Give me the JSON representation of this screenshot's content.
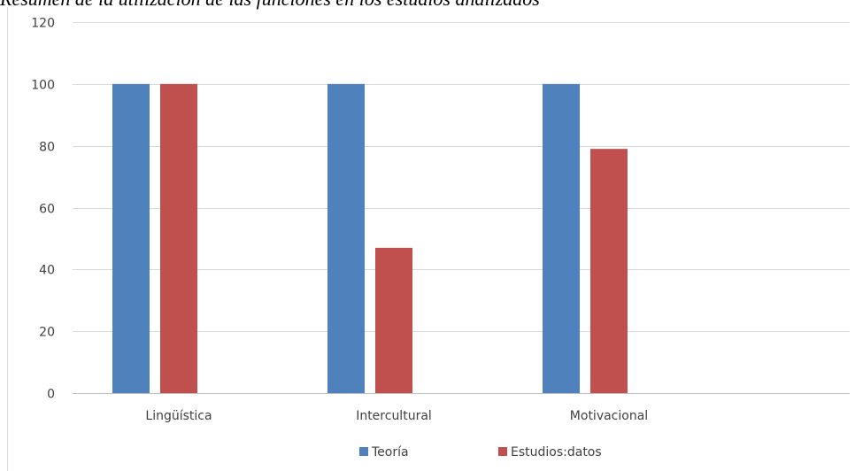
{
  "chart_data": {
    "type": "bar",
    "title": "Resumen de la utilización de las funciones en los estudios analizados",
    "categories": [
      "Lingüística",
      "Intercultural",
      "Motivacional"
    ],
    "series": [
      {
        "name": "Teoría",
        "values": [
          100,
          100,
          100
        ],
        "color": "#4f81bd"
      },
      {
        "name": "Estudios:datos",
        "values": [
          100,
          47,
          79
        ],
        "color": "#c0504d"
      }
    ],
    "ylim": [
      0,
      120
    ],
    "yticks": [
      0,
      20,
      40,
      60,
      80,
      100,
      120
    ],
    "grid": true,
    "legend": "bottom-center"
  },
  "colors": {
    "gridline": "#d9d9d9",
    "axis": "#bfbfbf",
    "border": "#d9d9d9"
  }
}
